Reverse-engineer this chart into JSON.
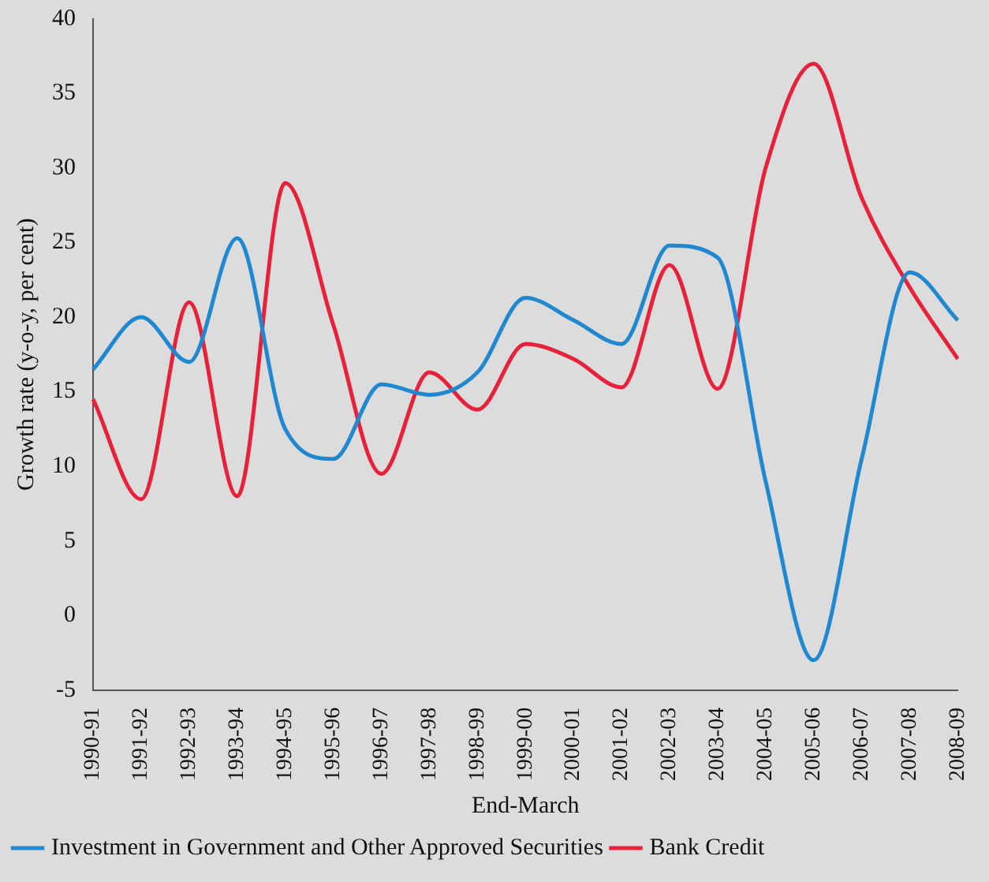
{
  "chart_data": {
    "type": "line",
    "xlabel": "End-March",
    "ylabel": "Growth rate (y-o-y, per cent)",
    "categories": [
      "1990-91",
      "1991-92",
      "1992-93",
      "1993-94",
      "1994-95",
      "1995-96",
      "1996-97",
      "1997-98",
      "1998-99",
      "1999-00",
      "2000-01",
      "2001-02",
      "2002-03",
      "2003-04",
      "2004-05",
      "2005-06",
      "2006-07",
      "2007-08",
      "2008-09"
    ],
    "series": [
      {
        "name": "Investment in Government and Other Approved Securities",
        "color": "#1f88d0",
        "values": [
          16.5,
          20,
          17,
          25.3,
          12.5,
          10.5,
          15.5,
          14.8,
          16.3,
          21.3,
          19.8,
          18.2,
          24.8,
          24,
          9,
          -3,
          10.5,
          23,
          19.8
        ]
      },
      {
        "name": "Bank Credit",
        "color": "#e8213a",
        "values": [
          14.5,
          7.8,
          21,
          8,
          29,
          19.5,
          9.5,
          16.3,
          13.8,
          18.2,
          17.2,
          15.3,
          23.5,
          15.2,
          30,
          37,
          28,
          22,
          17.2
        ]
      }
    ],
    "ylim": [
      -5,
      40
    ],
    "yticks": [
      -5,
      0,
      5,
      10,
      15,
      20,
      25,
      30,
      35,
      40
    ],
    "grid": false,
    "legend": "bottom",
    "marker": "none",
    "line_style": "solid"
  }
}
